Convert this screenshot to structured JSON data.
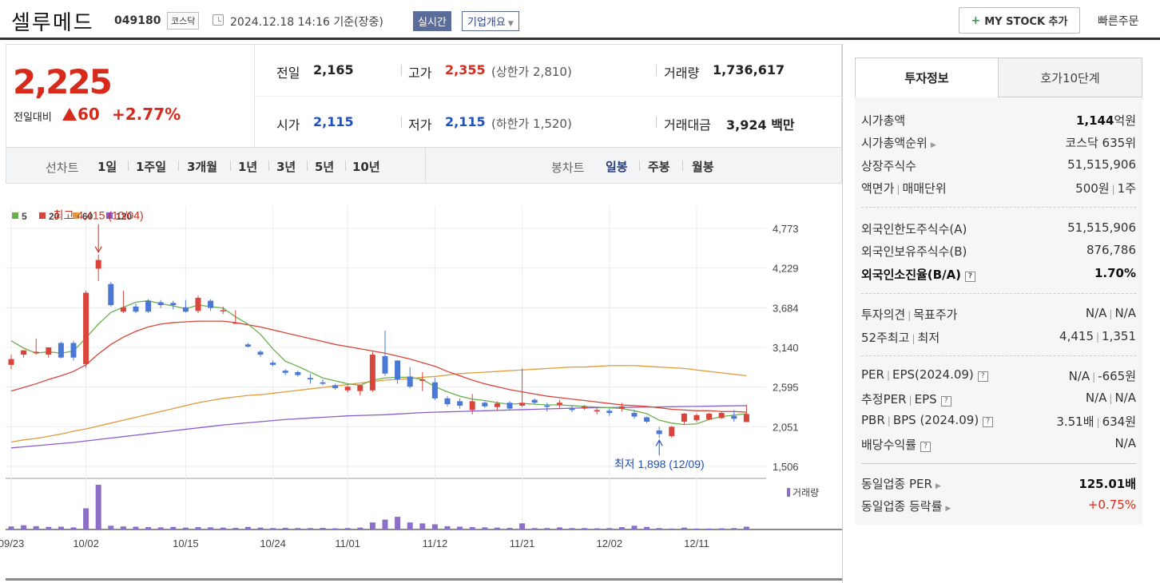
{
  "header": {
    "stock_name": "셀루메드",
    "stock_code": "049180",
    "market_badge": "코스닥",
    "datetime": "2024.12.18 14:16",
    "basis": "기준(장중)",
    "realtime_label": "실시간",
    "overview_label": "기업개요",
    "my_stock_label": "MY STOCK 추가",
    "quick_order_label": "빠른주문"
  },
  "price": {
    "current": "2,225",
    "compare_label": "전일대비",
    "change": "60",
    "change_pct": "+2.77%",
    "direction": "up",
    "prev_label": "전일",
    "prev": "2,165",
    "high_label": "고가",
    "high": "2,355",
    "upper_limit": "(상한가 2,810)",
    "volume_label": "거래량",
    "volume": "1,736,617",
    "open_label": "시가",
    "open": "2,115",
    "low_label": "저가",
    "low": "2,115",
    "lower_limit": "(하한가 1,520)",
    "amount_label": "거래대금",
    "amount": "3,924",
    "amount_unit": "백만"
  },
  "toolbar": {
    "line_chart_label": "선차트",
    "line_periods": [
      "1일",
      "1주일",
      "3개월",
      "1년",
      "3년",
      "5년",
      "10년"
    ],
    "candle_chart_label": "봉차트",
    "candle_periods": [
      "일봉",
      "주봉",
      "월봉"
    ],
    "active_candle": "일봉"
  },
  "chart_data": {
    "type": "candlestick",
    "legend": [
      {
        "name": "5",
        "color": "#6ab04c"
      },
      {
        "name": "20",
        "color": "#d9453a"
      },
      {
        "name": "60",
        "color": "#e09a3c"
      },
      {
        "name": "120",
        "color": "#8a5cd0"
      }
    ],
    "y_ticks": [
      "4,773",
      "4,229",
      "3,684",
      "3,140",
      "2,595",
      "2,051",
      "1,506"
    ],
    "ylim": [
      1506,
      4773
    ],
    "x_ticks": [
      {
        "label": "09/23",
        "index": 0
      },
      {
        "label": "10/02",
        "index": 6
      },
      {
        "label": "10/15",
        "index": 14
      },
      {
        "label": "10/24",
        "index": 21
      },
      {
        "label": "11/01",
        "index": 27
      },
      {
        "label": "11/12",
        "index": 34
      },
      {
        "label": "11/21",
        "index": 41
      },
      {
        "label": "12/02",
        "index": 48
      },
      {
        "label": "12/11",
        "index": 55
      }
    ],
    "annotation_high": {
      "text": "최고 4,415 (10/04)",
      "index": 7,
      "value": 4415
    },
    "annotation_low": {
      "text": "최저 1,898 (12/09)",
      "index": 52,
      "value": 1898
    },
    "volume_label": "거래량",
    "ohlc": [
      [
        2900,
        3040,
        2840,
        2980
      ],
      [
        3040,
        3100,
        3000,
        3100
      ],
      [
        3060,
        3260,
        3040,
        3080
      ],
      [
        3040,
        3120,
        3000,
        3140
      ],
      [
        3200,
        3220,
        2990,
        3000
      ],
      [
        3200,
        3230,
        2960,
        3000
      ],
      [
        2910,
        3920,
        2860,
        3890
      ],
      [
        4220,
        4415,
        4050,
        4340
      ],
      [
        4010,
        4040,
        3700,
        3720
      ],
      [
        3630,
        3920,
        3610,
        3690
      ],
      [
        3700,
        3740,
        3610,
        3630
      ],
      [
        3780,
        3800,
        3610,
        3630
      ],
      [
        3760,
        3790,
        3680,
        3720
      ],
      [
        3750,
        3780,
        3660,
        3720
      ],
      [
        3690,
        3790,
        3620,
        3630
      ],
      [
        3640,
        3850,
        3610,
        3820
      ],
      [
        3780,
        3800,
        3640,
        3680
      ],
      [
        3640,
        3700,
        3600,
        3650
      ],
      [
        3470,
        3650,
        3460,
        3480
      ],
      [
        3180,
        3200,
        3140,
        3150
      ],
      [
        3080,
        3100,
        3010,
        3040
      ],
      [
        2930,
        2960,
        2880,
        2900
      ],
      [
        2820,
        2840,
        2760,
        2790
      ],
      [
        2800,
        2820,
        2740,
        2760
      ],
      [
        2720,
        2780,
        2640,
        2700
      ],
      [
        2660,
        2700,
        2620,
        2640
      ],
      [
        2620,
        2640,
        2560,
        2580
      ],
      [
        2550,
        2620,
        2520,
        2600
      ],
      [
        2540,
        2630,
        2480,
        2620
      ],
      [
        2550,
        3080,
        2530,
        3040
      ],
      [
        3020,
        3370,
        2750,
        2780
      ],
      [
        2960,
        2960,
        2640,
        2700
      ],
      [
        2740,
        2870,
        2580,
        2600
      ],
      [
        2680,
        2800,
        2540,
        2700
      ],
      [
        2660,
        2720,
        2420,
        2440
      ],
      [
        2440,
        2470,
        2330,
        2360
      ],
      [
        2400,
        2440,
        2300,
        2340
      ],
      [
        2280,
        2500,
        2220,
        2400
      ],
      [
        2380,
        2400,
        2310,
        2330
      ],
      [
        2320,
        2400,
        2280,
        2370
      ],
      [
        2380,
        2400,
        2280,
        2300
      ],
      [
        2340,
        2850,
        2320,
        2380
      ],
      [
        2420,
        2440,
        2360,
        2380
      ],
      [
        2340,
        2380,
        2260,
        2330
      ],
      [
        2350,
        2420,
        2310,
        2380
      ],
      [
        2300,
        2340,
        2250,
        2280
      ],
      [
        2300,
        2350,
        2280,
        2330
      ],
      [
        2260,
        2310,
        2220,
        2280
      ],
      [
        2270,
        2300,
        2200,
        2240
      ],
      [
        2300,
        2380,
        2260,
        2330
      ],
      [
        2240,
        2280,
        2160,
        2190
      ],
      [
        2180,
        2190,
        2100,
        2120
      ],
      [
        2000,
        2050,
        1898,
        1950
      ],
      [
        1920,
        2060,
        1900,
        2050
      ],
      [
        2120,
        2240,
        2080,
        2230
      ],
      [
        2140,
        2230,
        2110,
        2210
      ],
      [
        2150,
        2240,
        2140,
        2230
      ],
      [
        2170,
        2260,
        2160,
        2240
      ],
      [
        2200,
        2280,
        2120,
        2160
      ],
      [
        2115,
        2355,
        2115,
        2225
      ]
    ],
    "volumes": [
      130,
      180,
      140,
      110,
      120,
      90,
      900,
      1900,
      160,
      130,
      120,
      100,
      90,
      110,
      80,
      100,
      90,
      80,
      70,
      110,
      80,
      60,
      70,
      60,
      60,
      70,
      50,
      60,
      80,
      300,
      420,
      540,
      300,
      260,
      220,
      140,
      120,
      100,
      90,
      80,
      70,
      260,
      60,
      60,
      90,
      60,
      60,
      50,
      60,
      100,
      160,
      110,
      60,
      40,
      80,
      40,
      40,
      50,
      60,
      120
    ],
    "ma5": [
      3230,
      3130,
      3060,
      3080,
      3060,
      3090,
      3270,
      3460,
      3620,
      3690,
      3760,
      3780,
      3740,
      3710,
      3670,
      3720,
      3700,
      3680,
      3560,
      3460,
      3320,
      3120,
      2950,
      2880,
      2800,
      2720,
      2680,
      2640,
      2620,
      2690,
      2720,
      2730,
      2730,
      2700,
      2600,
      2530,
      2470,
      2430,
      2410,
      2380,
      2360,
      2370,
      2360,
      2350,
      2350,
      2340,
      2330,
      2320,
      2310,
      2300,
      2270,
      2230,
      2140,
      2100,
      2080,
      2090,
      2150,
      2190,
      2210,
      2230
    ],
    "ma20": [
      2540,
      2590,
      2640,
      2700,
      2750,
      2810,
      2900,
      3050,
      3180,
      3280,
      3360,
      3420,
      3460,
      3480,
      3490,
      3500,
      3500,
      3500,
      3480,
      3450,
      3420,
      3380,
      3340,
      3300,
      3260,
      3220,
      3180,
      3150,
      3120,
      3090,
      3060,
      3020,
      2980,
      2930,
      2880,
      2810,
      2750,
      2690,
      2640,
      2600,
      2560,
      2530,
      2500,
      2470,
      2450,
      2430,
      2410,
      2390,
      2370,
      2350,
      2340,
      2330,
      2310,
      2290,
      2280,
      2270,
      2270,
      2260,
      2260,
      2250
    ],
    "ma60": [
      1840,
      1870,
      1890,
      1920,
      1950,
      1990,
      2020,
      2060,
      2100,
      2140,
      2180,
      2220,
      2260,
      2300,
      2340,
      2380,
      2410,
      2440,
      2460,
      2480,
      2490,
      2510,
      2530,
      2550,
      2570,
      2590,
      2610,
      2630,
      2650,
      2670,
      2690,
      2700,
      2710,
      2730,
      2740,
      2760,
      2780,
      2790,
      2800,
      2810,
      2820,
      2830,
      2840,
      2850,
      2860,
      2870,
      2870,
      2880,
      2890,
      2890,
      2890,
      2880,
      2870,
      2860,
      2850,
      2830,
      2810,
      2790,
      2770,
      2750
    ],
    "ma120": [
      1760,
      1775,
      1790,
      1805,
      1820,
      1835,
      1855,
      1875,
      1895,
      1915,
      1935,
      1955,
      1975,
      1995,
      2015,
      2035,
      2055,
      2075,
      2090,
      2105,
      2120,
      2135,
      2150,
      2160,
      2170,
      2180,
      2190,
      2200,
      2205,
      2210,
      2215,
      2225,
      2235,
      2245,
      2250,
      2255,
      2260,
      2265,
      2270,
      2275,
      2280,
      2285,
      2290,
      2295,
      2300,
      2305,
      2310,
      2312,
      2314,
      2316,
      2318,
      2320,
      2322,
      2325,
      2328,
      2330,
      2333,
      2336,
      2338,
      2340
    ]
  },
  "invest_info": {
    "tab_active": "투자정보",
    "tab_other": "호가10단계",
    "market_cap_label": "시가총액",
    "market_cap": "1,144",
    "market_cap_unit": "억원",
    "cap_rank_label": "시가총액순위",
    "cap_rank": "코스닥 635위",
    "shares_label": "상장주식수",
    "shares": "51,515,906",
    "face_label": "액면가",
    "unit_label": "매매단위",
    "face": "500원",
    "unit": "1주",
    "foreign_limit_label": "외국인한도주식수(A)",
    "foreign_limit": "51,515,906",
    "foreign_hold_label": "외국인보유주식수(B)",
    "foreign_hold": "876,786",
    "foreign_ratio_label": "외국인소진율(B/A)",
    "foreign_ratio": "1.70%",
    "opinion_label": "투자의견",
    "target_label": "목표주가",
    "opinion": "N/A",
    "target": "N/A",
    "w52_high_label": "52주최고",
    "w52_low_label": "최저",
    "w52_high": "4,415",
    "w52_low": "1,351",
    "per_label": "PER",
    "eps_label": "EPS(2024.09)",
    "per": "N/A",
    "eps": "-665원",
    "est_per_label": "추정PER",
    "est_eps_label": "EPS",
    "est_per": "N/A",
    "est_eps": "N/A",
    "pbr_label": "PBR",
    "bps_label": "BPS (2024.09)",
    "pbr": "3.51배",
    "bps": "634원",
    "div_label": "배당수익률",
    "div": "N/A",
    "sector_per_label": "동일업종 PER",
    "sector_per": "125.01배",
    "sector_rate_label": "동일업종 등락률",
    "sector_rate": "+0.75%"
  },
  "colors": {
    "up": "#d62b1a",
    "down": "#1e4fc3",
    "up_candle": "#d9453a",
    "down_candle": "#4a78d6",
    "volume": "#8c6fc8"
  }
}
